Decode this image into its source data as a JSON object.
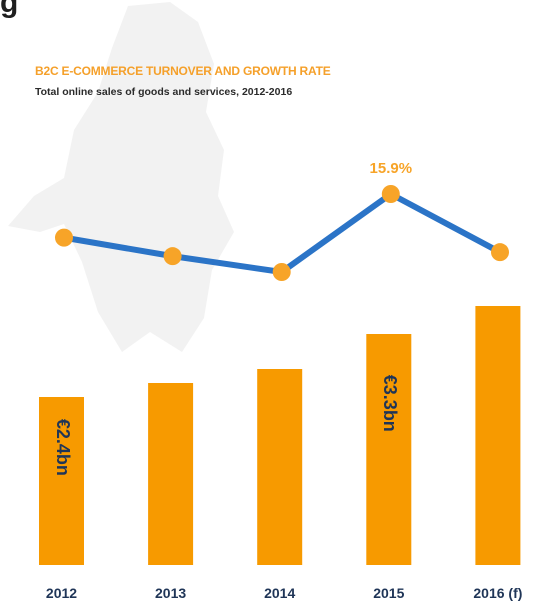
{
  "corner_mark": "g",
  "chart_data": {
    "type": "bar",
    "title": "B2C E-COMMERCE TURNOVER AND GROWTH RATE",
    "subtitle": "Total online sales of goods and services, 2012-2016",
    "categories": [
      "2012",
      "2013",
      "2014",
      "2015",
      "2016 (f)"
    ],
    "series": [
      {
        "type": "bar",
        "values": [
          2.4,
          2.6,
          2.8,
          3.3,
          3.7
        ],
        "data_labels": [
          "€2.4bn",
          "",
          "",
          "€3.3bn",
          ""
        ],
        "color": "#f79a00"
      },
      {
        "type": "line",
        "values": [
          12.6,
          11.2,
          10.0,
          15.9,
          11.5
        ],
        "data_labels": [
          "",
          "",
          "",
          "15.9%",
          ""
        ],
        "line_color": "#2b74c7",
        "marker_color": "#f7a428"
      }
    ],
    "bar_axis_range": [
      0,
      3.7
    ],
    "line_axis_range": [
      10.0,
      15.9
    ],
    "grid": false,
    "legend": "none"
  }
}
